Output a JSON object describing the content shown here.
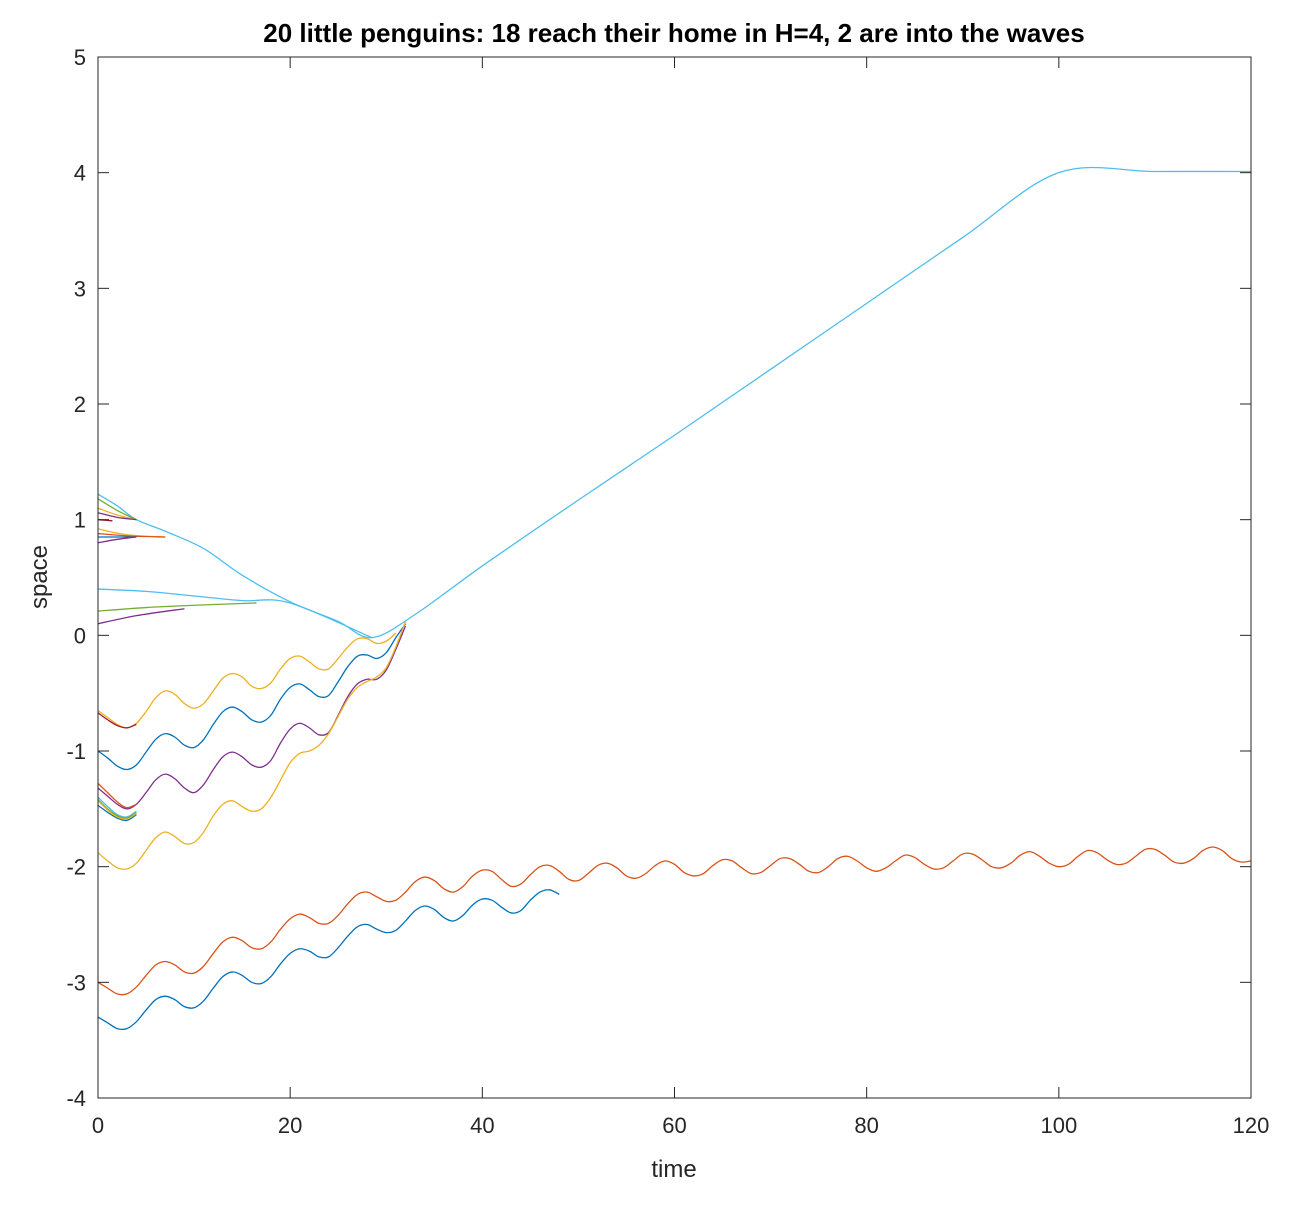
{
  "chart_data": {
    "type": "line",
    "title": "20 little penguins: 18 reach their home in H=4, 2 are into the waves",
    "xlabel": "time",
    "ylabel": "space",
    "xlim": [
      0,
      120
    ],
    "ylim": [
      -4,
      5
    ],
    "xticks": [
      0,
      20,
      40,
      60,
      80,
      100,
      120
    ],
    "yticks": [
      -4,
      -3,
      -2,
      -1,
      0,
      1,
      2,
      3,
      4,
      5
    ],
    "xtick_labels": [
      "0",
      "20",
      "40",
      "60",
      "80",
      "100",
      "120"
    ],
    "ytick_labels": [
      "-4",
      "-3",
      "-2",
      "-1",
      "0",
      "1",
      "2",
      "3",
      "4",
      "5"
    ],
    "grid": false,
    "legend": "none",
    "box": true,
    "series": [
      {
        "color": "#4DBEEE",
        "x": [
          0,
          2,
          4,
          7,
          11,
          15,
          20,
          25,
          28.5,
          33,
          40,
          50,
          60,
          70,
          80,
          90,
          100,
          110,
          120
        ],
        "y": [
          1.22,
          1.12,
          1.0,
          0.9,
          0.75,
          0.52,
          0.29,
          0.12,
          -0.02,
          0.18,
          0.6,
          1.17,
          1.73,
          2.3,
          2.87,
          3.44,
          4.0,
          4.01,
          4.01
        ]
      },
      {
        "color": "#4DBEEE",
        "x": [
          0,
          5,
          10,
          15,
          20,
          28.5
        ],
        "y": [
          0.4,
          0.38,
          0.34,
          0.3,
          0.28,
          -0.02
        ]
      },
      {
        "color": "#77AC30",
        "x": [
          0,
          5,
          10,
          16.5
        ],
        "y": [
          0.21,
          0.24,
          0.26,
          0.28
        ]
      },
      {
        "color": "#7E2F8E",
        "x": [
          0,
          4,
          9
        ],
        "y": [
          0.1,
          0.17,
          0.23
        ]
      },
      {
        "color": "#77AC30",
        "x": [
          0,
          2,
          4
        ],
        "y": [
          1.18,
          1.08,
          1.0
        ]
      },
      {
        "color": "#EDB120",
        "x": [
          0,
          2,
          4
        ],
        "y": [
          1.1,
          1.04,
          1.0
        ]
      },
      {
        "color": "#7E2F8E",
        "x": [
          0,
          2,
          4
        ],
        "y": [
          1.06,
          1.02,
          1.0
        ]
      },
      {
        "color": "#A2142F",
        "x": [
          0,
          1.5
        ],
        "y": [
          1.0,
          0.99
        ]
      },
      {
        "color": "#EDB120",
        "x": [
          0,
          3,
          7
        ],
        "y": [
          0.92,
          0.87,
          0.85
        ]
      },
      {
        "color": "#D95319",
        "x": [
          0,
          3,
          7
        ],
        "y": [
          0.88,
          0.86,
          0.85
        ]
      },
      {
        "color": "#0072BD",
        "x": [
          0,
          2,
          4
        ],
        "y": [
          0.85,
          0.85,
          0.85
        ]
      },
      {
        "color": "#7E2F8E",
        "x": [
          0,
          2,
          4
        ],
        "y": [
          0.8,
          0.83,
          0.85
        ]
      },
      {
        "color": "#EDB120",
        "x": [
          0,
          1,
          2,
          3,
          4,
          5,
          6,
          7,
          8,
          9,
          10,
          11,
          12,
          13,
          14,
          15,
          16,
          17,
          18,
          19,
          20,
          21,
          22,
          23,
          24,
          25,
          26,
          27,
          28,
          29,
          30,
          31
        ],
        "y": [
          -0.65,
          -0.71,
          -0.77,
          -0.8,
          -0.76,
          -0.66,
          -0.54,
          -0.48,
          -0.51,
          -0.59,
          -0.63,
          -0.59,
          -0.48,
          -0.37,
          -0.33,
          -0.36,
          -0.44,
          -0.46,
          -0.41,
          -0.29,
          -0.2,
          -0.18,
          -0.23,
          -0.29,
          -0.29,
          -0.2,
          -0.1,
          -0.03,
          -0.03,
          -0.07,
          -0.05,
          0.02
        ]
      },
      {
        "color": "#A2142F",
        "x": [
          0,
          1,
          2,
          3,
          4
        ],
        "y": [
          -0.67,
          -0.73,
          -0.78,
          -0.8,
          -0.77
        ]
      },
      {
        "color": "#0072BD",
        "x": [
          0,
          1,
          2,
          3,
          4,
          5,
          6,
          7,
          8,
          9,
          10,
          11,
          12,
          13,
          14,
          15,
          16,
          17,
          18,
          19,
          20,
          21,
          22,
          23,
          24,
          25,
          26,
          27,
          28,
          29,
          30,
          31,
          32
        ],
        "y": [
          -1.0,
          -1.06,
          -1.13,
          -1.16,
          -1.12,
          -1.01,
          -0.9,
          -0.85,
          -0.88,
          -0.95,
          -0.97,
          -0.9,
          -0.77,
          -0.66,
          -0.62,
          -0.66,
          -0.73,
          -0.75,
          -0.69,
          -0.55,
          -0.45,
          -0.42,
          -0.47,
          -0.53,
          -0.52,
          -0.4,
          -0.27,
          -0.18,
          -0.17,
          -0.2,
          -0.15,
          -0.02,
          0.1
        ]
      },
      {
        "color": "#7E2F8E",
        "x": [
          0,
          1,
          2,
          3,
          4,
          5,
          6,
          7,
          8,
          9,
          10,
          11,
          12,
          13,
          14,
          15,
          16,
          17,
          18,
          19,
          20,
          21,
          22,
          23,
          24,
          25,
          26,
          27,
          28,
          29,
          30,
          31,
          32
        ],
        "y": [
          -1.32,
          -1.39,
          -1.46,
          -1.5,
          -1.46,
          -1.36,
          -1.25,
          -1.2,
          -1.24,
          -1.32,
          -1.36,
          -1.29,
          -1.16,
          -1.05,
          -1.01,
          -1.05,
          -1.12,
          -1.14,
          -1.08,
          -0.93,
          -0.81,
          -0.76,
          -0.8,
          -0.86,
          -0.84,
          -0.69,
          -0.53,
          -0.42,
          -0.38,
          -0.38,
          -0.3,
          -0.12,
          0.08
        ]
      },
      {
        "color": "#D95319",
        "x": [
          0,
          1,
          2,
          3,
          4
        ],
        "y": [
          -1.28,
          -1.36,
          -1.44,
          -1.49,
          -1.46
        ]
      },
      {
        "color": "#4DBEEE",
        "x": [
          0,
          1,
          2,
          3,
          4
        ],
        "y": [
          -1.4,
          -1.48,
          -1.55,
          -1.57,
          -1.52
        ]
      },
      {
        "color": "#77AC30",
        "x": [
          0,
          1,
          2,
          3,
          4
        ],
        "y": [
          -1.42,
          -1.5,
          -1.56,
          -1.58,
          -1.53
        ]
      },
      {
        "color": "#0072BD",
        "x": [
          0,
          1,
          2,
          3,
          4
        ],
        "y": [
          -1.47,
          -1.53,
          -1.58,
          -1.6,
          -1.55
        ]
      },
      {
        "color": "#EDB120",
        "x": [
          0,
          1,
          2,
          3,
          4
        ],
        "y": [
          -1.43,
          -1.51,
          -1.57,
          -1.59,
          -1.54
        ]
      },
      {
        "color": "#EDB120",
        "x": [
          0,
          1,
          2,
          3,
          4,
          5,
          6,
          7,
          8,
          9,
          10,
          11,
          12,
          13,
          14,
          15,
          16,
          17,
          18,
          19,
          20,
          21,
          22,
          23,
          24,
          25,
          26,
          27,
          28,
          29,
          30,
          31,
          32
        ],
        "y": [
          -1.88,
          -1.95,
          -2.01,
          -2.02,
          -1.97,
          -1.86,
          -1.75,
          -1.7,
          -1.74,
          -1.8,
          -1.79,
          -1.7,
          -1.56,
          -1.46,
          -1.43,
          -1.48,
          -1.52,
          -1.5,
          -1.4,
          -1.25,
          -1.1,
          -1.02,
          -1.0,
          -0.95,
          -0.85,
          -0.7,
          -0.55,
          -0.45,
          -0.4,
          -0.36,
          -0.28,
          -0.1,
          0.12
        ]
      },
      {
        "color": "#D95319",
        "x": [
          0,
          1,
          2,
          3,
          4,
          5,
          6,
          7,
          8,
          9,
          10,
          11,
          12,
          13,
          14,
          15,
          16,
          17,
          18,
          19,
          20,
          21,
          22,
          23,
          24,
          25,
          26,
          27,
          28,
          29,
          30,
          31,
          32,
          33,
          34,
          35,
          36,
          37,
          38,
          39,
          40,
          41,
          42,
          43,
          44,
          45,
          46,
          47,
          48,
          49,
          50,
          51,
          52,
          53,
          54,
          55,
          56,
          57,
          58,
          59,
          60,
          61,
          62,
          63,
          64,
          65,
          66,
          67,
          68,
          69,
          70,
          71,
          72,
          73,
          74,
          75,
          76,
          77,
          78,
          79,
          80,
          81,
          82,
          83,
          84,
          85,
          86,
          87,
          88,
          89,
          90,
          91,
          92,
          93,
          94,
          95,
          96,
          97,
          98,
          99,
          100,
          101,
          102,
          103,
          104,
          105,
          106,
          107,
          108,
          109,
          110,
          111,
          112,
          113,
          114,
          115,
          116,
          117,
          118,
          119,
          120
        ],
        "y": [
          -3.0,
          -3.05,
          -3.1,
          -3.1,
          -3.04,
          -2.94,
          -2.85,
          -2.82,
          -2.85,
          -2.91,
          -2.92,
          -2.86,
          -2.75,
          -2.65,
          -2.61,
          -2.64,
          -2.7,
          -2.71,
          -2.65,
          -2.54,
          -2.45,
          -2.41,
          -2.44,
          -2.49,
          -2.49,
          -2.42,
          -2.32,
          -2.24,
          -2.22,
          -2.26,
          -2.3,
          -2.29,
          -2.22,
          -2.13,
          -2.09,
          -2.12,
          -2.19,
          -2.22,
          -2.17,
          -2.08,
          -2.03,
          -2.04,
          -2.11,
          -2.17,
          -2.15,
          -2.07,
          -2.0,
          -1.99,
          -2.04,
          -2.11,
          -2.12,
          -2.06,
          -1.99,
          -1.97,
          -2.01,
          -2.08,
          -2.1,
          -2.06,
          -1.99,
          -1.95,
          -1.98,
          -2.05,
          -2.08,
          -2.06,
          -1.99,
          -1.94,
          -1.95,
          -2.01,
          -2.06,
          -2.05,
          -1.99,
          -1.93,
          -1.93,
          -1.98,
          -2.04,
          -2.05,
          -2.0,
          -1.93,
          -1.91,
          -1.95,
          -2.01,
          -2.04,
          -2.01,
          -1.95,
          -1.9,
          -1.92,
          -1.98,
          -2.02,
          -2.01,
          -1.95,
          -1.89,
          -1.89,
          -1.94,
          -2.0,
          -2.01,
          -1.97,
          -1.9,
          -1.87,
          -1.91,
          -1.97,
          -2.0,
          -1.98,
          -1.91,
          -1.86,
          -1.88,
          -1.94,
          -1.98,
          -1.97,
          -1.91,
          -1.85,
          -1.85,
          -1.9,
          -1.96,
          -1.97,
          -1.93,
          -1.86,
          -1.83,
          -1.86,
          -1.93,
          -1.96,
          -1.95
        ]
      },
      {
        "color": "#0072BD",
        "x": [
          0,
          1,
          2,
          3,
          4,
          5,
          6,
          7,
          8,
          9,
          10,
          11,
          12,
          13,
          14,
          15,
          16,
          17,
          18,
          19,
          20,
          21,
          22,
          23,
          24,
          25,
          26,
          27,
          28,
          29,
          30,
          31,
          32,
          33,
          34,
          35,
          36,
          37,
          38,
          39,
          40,
          41,
          42,
          43,
          44,
          45,
          46,
          47,
          48
        ],
        "y": [
          -3.3,
          -3.35,
          -3.4,
          -3.4,
          -3.34,
          -3.24,
          -3.15,
          -3.12,
          -3.15,
          -3.21,
          -3.22,
          -3.16,
          -3.05,
          -2.95,
          -2.91,
          -2.94,
          -3.0,
          -3.01,
          -2.95,
          -2.84,
          -2.75,
          -2.71,
          -2.73,
          -2.78,
          -2.78,
          -2.7,
          -2.6,
          -2.52,
          -2.5,
          -2.54,
          -2.57,
          -2.55,
          -2.47,
          -2.38,
          -2.34,
          -2.37,
          -2.44,
          -2.47,
          -2.42,
          -2.33,
          -2.28,
          -2.29,
          -2.35,
          -2.4,
          -2.38,
          -2.29,
          -2.22,
          -2.2,
          -2.24
        ]
      }
    ]
  }
}
